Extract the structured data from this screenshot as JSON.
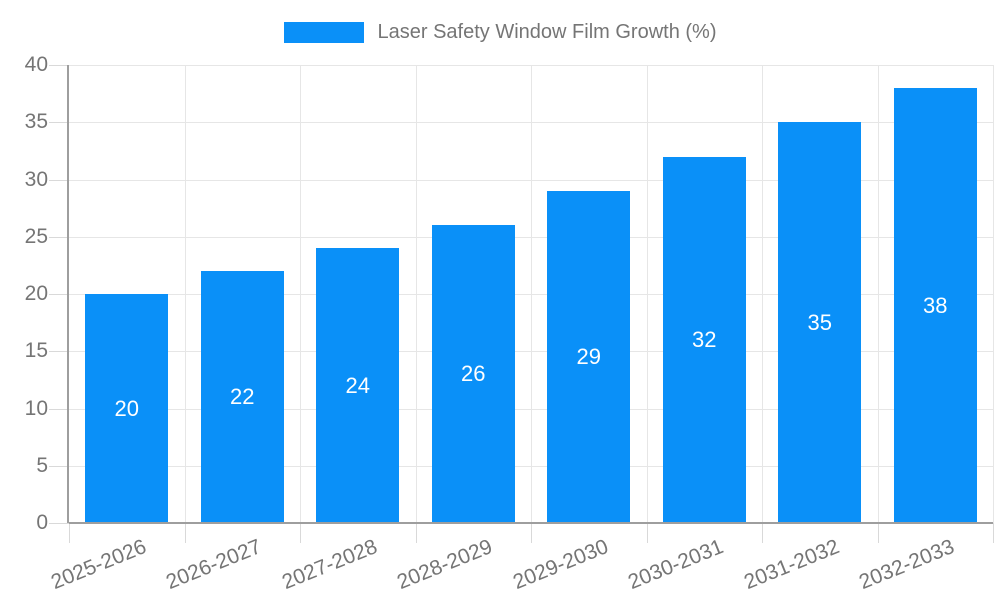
{
  "chart_data": {
    "type": "bar",
    "title": "Laser Safety Window Film Growth (%)",
    "categories": [
      "2025-2026",
      "2026-2027",
      "2027-2028",
      "2028-2029",
      "2029-2030",
      "2030-2031",
      "2031-2032",
      "2032-2033"
    ],
    "values": [
      20,
      22,
      24,
      26,
      29,
      32,
      35,
      38
    ],
    "xlabel": "",
    "ylabel": "",
    "ylim": [
      0,
      40
    ],
    "yticks": [
      0,
      5,
      10,
      15,
      20,
      25,
      30,
      35,
      40
    ],
    "grid": true,
    "legend_position": "top",
    "bar_value_labels_inside": true,
    "colors": {
      "bar": "#0A90F8",
      "bar_label_text": "#FFFFFF",
      "axis_text": "#757575",
      "gridline": "#E6E6E6",
      "tick": "#D9D9D9",
      "axis_line": "#9E9E9E",
      "background": "#FFFFFF"
    }
  }
}
